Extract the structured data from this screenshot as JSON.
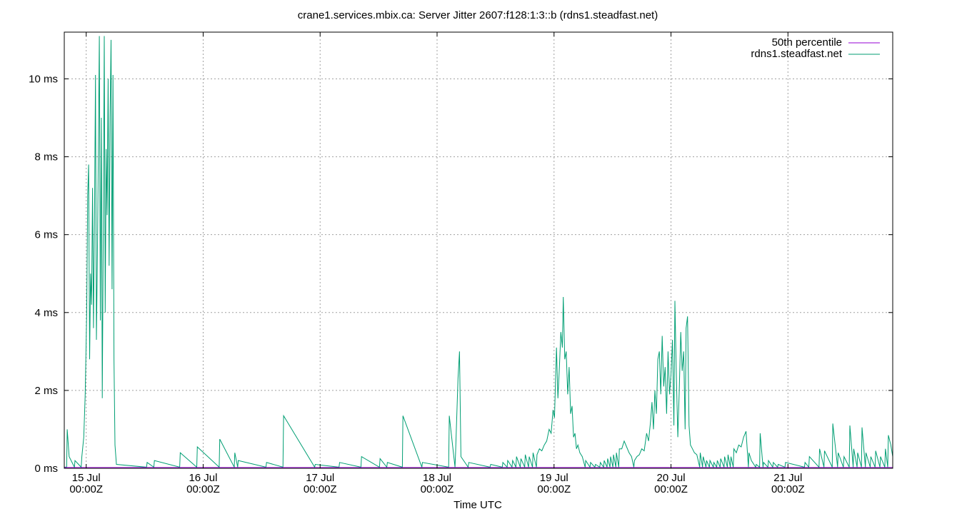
{
  "chart_data": {
    "type": "line",
    "title": "crane1.services.mbix.ca: Server Jitter 2607:f128:1:3::b (rdns1.steadfast.net)",
    "xlabel": "Time UTC",
    "ylabel": "",
    "x_unit": "hours since 15 Jul 00:00Z",
    "xlim": [
      -4.5,
      165.5
    ],
    "ylim": [
      0,
      11.2
    ],
    "grid": true,
    "legend_position": "top-right",
    "x_ticks": [
      {
        "value": 0,
        "line1": "15 Jul",
        "line2": "00:00Z"
      },
      {
        "value": 24,
        "line1": "16 Jul",
        "line2": "00:00Z"
      },
      {
        "value": 48,
        "line1": "17 Jul",
        "line2": "00:00Z"
      },
      {
        "value": 72,
        "line1": "18 Jul",
        "line2": "00:00Z"
      },
      {
        "value": 96,
        "line1": "19 Jul",
        "line2": "00:00Z"
      },
      {
        "value": 120,
        "line1": "20 Jul",
        "line2": "00:00Z"
      },
      {
        "value": 144,
        "line1": "21 Jul",
        "line2": "00:00Z"
      }
    ],
    "y_ticks": [
      {
        "value": 0,
        "label": "0 ms"
      },
      {
        "value": 2,
        "label": "2 ms"
      },
      {
        "value": 4,
        "label": "4 ms"
      },
      {
        "value": 6,
        "label": "6 ms"
      },
      {
        "value": 8,
        "label": "8 ms"
      },
      {
        "value": 10,
        "label": "10 ms"
      }
    ],
    "series": [
      {
        "name": "50th percentile",
        "color": "#9400d3",
        "x": [
          -4.5,
          165.5
        ],
        "y": [
          0.02,
          0.02
        ]
      },
      {
        "name": "rdns1.steadfast.net",
        "color": "#009e73",
        "baseline": 0.03,
        "peaks": [
          [
            -3.9,
            1.0
          ],
          [
            -3.5,
            0.3
          ],
          [
            -2.3,
            0.2
          ],
          [
            -0.9,
            0.3
          ],
          [
            -0.5,
            0.8
          ],
          [
            -0.2,
            1.9
          ],
          [
            0.1,
            4.0
          ],
          [
            0.3,
            7.0
          ],
          [
            0.5,
            7.8
          ],
          [
            0.7,
            2.8
          ],
          [
            0.9,
            5.0
          ],
          [
            1.1,
            4.2
          ],
          [
            1.3,
            7.2
          ],
          [
            1.5,
            3.6
          ],
          [
            1.7,
            6.3
          ],
          [
            1.9,
            10.1
          ],
          [
            2.1,
            3.3
          ],
          [
            2.3,
            5.5
          ],
          [
            2.5,
            8.3
          ],
          [
            2.7,
            11.1
          ],
          [
            2.9,
            3.8
          ],
          [
            3.1,
            9.0
          ],
          [
            3.3,
            1.8
          ],
          [
            3.5,
            6.0
          ],
          [
            3.7,
            11.1
          ],
          [
            3.9,
            4.0
          ],
          [
            4.1,
            8.2
          ],
          [
            4.3,
            6.5
          ],
          [
            4.5,
            10.0
          ],
          [
            4.7,
            5.2
          ],
          [
            4.9,
            9.0
          ],
          [
            5.1,
            11.0
          ],
          [
            5.3,
            4.6
          ],
          [
            5.5,
            10.1
          ],
          [
            5.7,
            2.8
          ],
          [
            5.9,
            0.6
          ],
          [
            6.2,
            0.1
          ],
          [
            12.5,
            0.15
          ],
          [
            14.0,
            0.2
          ],
          [
            19.3,
            0.4
          ],
          [
            22.8,
            0.55
          ],
          [
            27.4,
            0.75
          ],
          [
            30.5,
            0.4
          ],
          [
            31.2,
            0.2
          ],
          [
            37.0,
            0.15
          ],
          [
            40.5,
            1.35
          ],
          [
            47.0,
            0.1
          ],
          [
            52.0,
            0.15
          ],
          [
            56.5,
            0.3
          ],
          [
            60.3,
            0.25
          ],
          [
            61.8,
            0.15
          ],
          [
            65.0,
            1.35
          ],
          [
            69.0,
            0.15
          ],
          [
            74.5,
            1.35
          ],
          [
            75.8,
            0.4
          ],
          [
            76.3,
            2.3
          ],
          [
            76.6,
            3.0
          ],
          [
            76.9,
            0.3
          ],
          [
            78.5,
            0.15
          ],
          [
            83.0,
            0.1
          ],
          [
            85.5,
            0.15
          ],
          [
            86.5,
            0.2
          ],
          [
            87.5,
            0.2
          ],
          [
            88.3,
            0.3
          ],
          [
            89.2,
            0.25
          ],
          [
            90.1,
            0.35
          ],
          [
            90.9,
            0.3
          ],
          [
            91.7,
            0.4
          ],
          [
            92.5,
            0.35
          ],
          [
            93.0,
            0.5
          ],
          [
            93.5,
            0.45
          ],
          [
            94.0,
            0.6
          ],
          [
            94.5,
            0.7
          ],
          [
            95.0,
            1.0
          ],
          [
            95.4,
            0.9
          ],
          [
            95.8,
            1.5
          ],
          [
            96.1,
            1.3
          ],
          [
            96.5,
            3.1
          ],
          [
            96.8,
            1.8
          ],
          [
            97.1,
            2.6
          ],
          [
            97.4,
            3.5
          ],
          [
            97.7,
            3.1
          ],
          [
            97.9,
            4.4
          ],
          [
            98.2,
            2.8
          ],
          [
            98.5,
            3.0
          ],
          [
            98.8,
            1.9
          ],
          [
            99.1,
            2.6
          ],
          [
            99.4,
            1.4
          ],
          [
            99.7,
            1.6
          ],
          [
            100.0,
            0.8
          ],
          [
            100.3,
            0.9
          ],
          [
            100.6,
            0.5
          ],
          [
            100.9,
            0.6
          ],
          [
            101.3,
            0.4
          ],
          [
            101.8,
            0.3
          ],
          [
            102.5,
            0.2
          ],
          [
            103.5,
            0.15
          ],
          [
            104.5,
            0.1
          ],
          [
            105.5,
            0.15
          ],
          [
            106.3,
            0.2
          ],
          [
            107.0,
            0.25
          ],
          [
            107.6,
            0.3
          ],
          [
            108.2,
            0.35
          ],
          [
            108.8,
            0.4
          ],
          [
            109.4,
            0.5
          ],
          [
            109.9,
            0.5
          ],
          [
            110.4,
            0.7
          ],
          [
            110.9,
            0.55
          ],
          [
            111.4,
            0.4
          ],
          [
            111.9,
            0.3
          ],
          [
            112.5,
            0.2
          ],
          [
            113.0,
            0.3
          ],
          [
            113.5,
            0.35
          ],
          [
            114.0,
            0.5
          ],
          [
            114.5,
            0.45
          ],
          [
            115.0,
            0.9
          ],
          [
            115.4,
            0.7
          ],
          [
            115.8,
            1.2
          ],
          [
            116.1,
            1.7
          ],
          [
            116.4,
            1.0
          ],
          [
            116.7,
            2.0
          ],
          [
            117.0,
            1.4
          ],
          [
            117.3,
            2.8
          ],
          [
            117.6,
            3.0
          ],
          [
            117.9,
            1.9
          ],
          [
            118.2,
            3.4
          ],
          [
            118.5,
            2.1
          ],
          [
            118.8,
            2.6
          ],
          [
            119.1,
            1.4
          ],
          [
            119.4,
            3.0
          ],
          [
            119.7,
            1.9
          ],
          [
            120.0,
            2.4
          ],
          [
            120.3,
            3.3
          ],
          [
            120.6,
            1.1
          ],
          [
            120.8,
            4.3
          ],
          [
            121.1,
            2.4
          ],
          [
            121.4,
            0.8
          ],
          [
            121.7,
            2.0
          ],
          [
            122.0,
            3.5
          ],
          [
            122.3,
            2.5
          ],
          [
            122.6,
            3.0
          ],
          [
            122.9,
            1.0
          ],
          [
            123.1,
            3.6
          ],
          [
            123.4,
            3.9
          ],
          [
            123.7,
            1.1
          ],
          [
            124.0,
            0.6
          ],
          [
            124.4,
            0.5
          ],
          [
            124.8,
            0.4
          ],
          [
            125.3,
            0.35
          ],
          [
            126.0,
            0.4
          ],
          [
            126.6,
            0.3
          ],
          [
            127.3,
            0.2
          ],
          [
            128.0,
            0.2
          ],
          [
            128.8,
            0.15
          ],
          [
            129.5,
            0.2
          ],
          [
            130.2,
            0.25
          ],
          [
            131.0,
            0.3
          ],
          [
            131.7,
            0.35
          ],
          [
            132.3,
            0.3
          ],
          [
            132.9,
            0.5
          ],
          [
            133.4,
            0.4
          ],
          [
            133.9,
            0.6
          ],
          [
            134.4,
            0.55
          ],
          [
            134.9,
            0.8
          ],
          [
            135.4,
            0.95
          ],
          [
            136.0,
            0.4
          ],
          [
            136.5,
            0.2
          ],
          [
            137.5,
            0.1
          ],
          [
            138.3,
            0.9
          ],
          [
            139.0,
            0.15
          ],
          [
            140.0,
            0.2
          ],
          [
            141.0,
            0.15
          ],
          [
            142.0,
            0.1
          ],
          [
            143.5,
            0.15
          ],
          [
            147.5,
            0.15
          ],
          [
            148.4,
            0.3
          ],
          [
            150.5,
            0.5
          ],
          [
            151.5,
            0.45
          ],
          [
            153.2,
            1.15
          ],
          [
            154.3,
            0.4
          ],
          [
            155.5,
            0.3
          ],
          [
            156.7,
            1.1
          ],
          [
            157.5,
            0.5
          ],
          [
            158.3,
            0.4
          ],
          [
            159.2,
            1.05
          ],
          [
            160.0,
            0.4
          ],
          [
            161.0,
            0.3
          ],
          [
            162.0,
            0.45
          ],
          [
            163.0,
            0.3
          ],
          [
            164.0,
            0.5
          ],
          [
            164.6,
            0.85
          ],
          [
            165.1,
            0.6
          ],
          [
            165.5,
            0.3
          ]
        ]
      }
    ]
  }
}
